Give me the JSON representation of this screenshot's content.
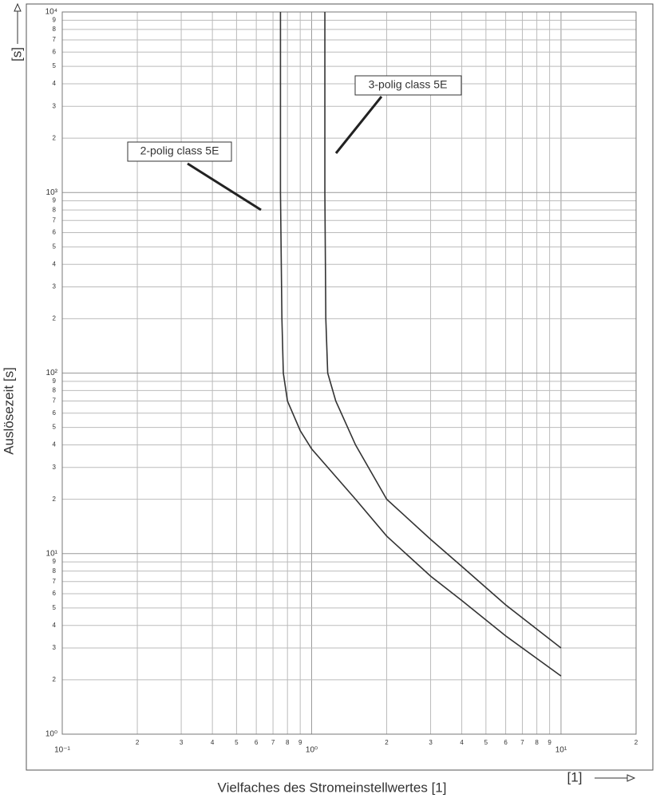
{
  "chart_data": {
    "type": "line",
    "xlabel": "Vielfaches des Stromeinstellwertes [1]",
    "ylabel": "Auslösezeit [s]",
    "x_unit": "[1]",
    "y_unit": "[s]",
    "log_x": true,
    "log_y": true,
    "grid": true,
    "xlim": [
      0.1,
      20
    ],
    "ylim": [
      1,
      10000
    ],
    "xticks": [
      {
        "value": 0.1,
        "label": "10⁻¹"
      },
      {
        "value": 0.2,
        "label": "2"
      },
      {
        "value": 0.3,
        "label": "3"
      },
      {
        "value": 0.4,
        "label": "4"
      },
      {
        "value": 0.5,
        "label": "5"
      },
      {
        "value": 0.6,
        "label": "6"
      },
      {
        "value": 0.7,
        "label": "7"
      },
      {
        "value": 0.8,
        "label": "8"
      },
      {
        "value": 0.9,
        "label": "9"
      },
      {
        "value": 1,
        "label": "10⁰"
      },
      2,
      3,
      4,
      5,
      6,
      7,
      8,
      9,
      {
        "value": 10,
        "label": "10¹"
      },
      {
        "value": 20,
        "label": "2"
      }
    ],
    "yticks": [
      {
        "value": 1,
        "label": "10⁰"
      },
      2,
      3,
      4,
      5,
      6,
      7,
      8,
      9,
      {
        "value": 10,
        "label": "10¹"
      },
      {
        "value": 20,
        "label": "2"
      },
      {
        "value": 30,
        "label": "3"
      },
      {
        "value": 40,
        "label": "4"
      },
      {
        "value": 50,
        "label": "5"
      },
      {
        "value": 60,
        "label": "6"
      },
      {
        "value": 70,
        "label": "7"
      },
      {
        "value": 80,
        "label": "8"
      },
      {
        "value": 90,
        "label": "9"
      },
      {
        "value": 100,
        "label": "10²"
      },
      {
        "value": 200,
        "label": "2"
      },
      {
        "value": 300,
        "label": "3"
      },
      {
        "value": 400,
        "label": "4"
      },
      {
        "value": 500,
        "label": "5"
      },
      {
        "value": 600,
        "label": "6"
      },
      {
        "value": 700,
        "label": "7"
      },
      {
        "value": 800,
        "label": "8"
      },
      {
        "value": 900,
        "label": "9"
      },
      {
        "value": 1000,
        "label": "10³"
      },
      {
        "value": 2000,
        "label": "2"
      },
      {
        "value": 3000,
        "label": "3"
      },
      {
        "value": 4000,
        "label": "4"
      },
      {
        "value": 5000,
        "label": "5"
      },
      {
        "value": 6000,
        "label": "6"
      },
      {
        "value": 7000,
        "label": "7"
      },
      {
        "value": 8000,
        "label": "8"
      },
      {
        "value": 9000,
        "label": "9"
      },
      {
        "value": 10000,
        "label": "10⁴"
      }
    ],
    "series": [
      {
        "name": "2-polig class 5E",
        "color": "#333333",
        "x": [
          0.75,
          0.75,
          0.76,
          0.77,
          0.8,
          0.9,
          1.0,
          1.5,
          2,
          3,
          4,
          6,
          10
        ],
        "values": [
          10000,
          1000,
          200,
          100,
          70,
          48,
          38,
          20,
          12.5,
          7.5,
          5.5,
          3.5,
          2.1
        ]
      },
      {
        "name": "3-polig class 5E",
        "color": "#333333",
        "x": [
          1.13,
          1.13,
          1.14,
          1.16,
          1.25,
          1.5,
          2,
          3,
          4,
          6,
          10
        ],
        "values": [
          10000,
          1000,
          200,
          100,
          70,
          40,
          20,
          12,
          8.5,
          5.2,
          3.0
        ]
      }
    ]
  }
}
